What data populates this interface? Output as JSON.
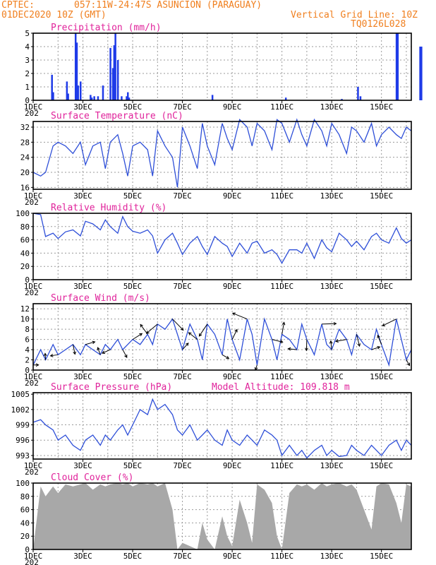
{
  "header": {
    "source": "CPTEC:",
    "location": "057:11W-24:47S  ASUNCION (PARAGUAY)",
    "run": "01DEC2020 10Z (GMT)",
    "grid_note": "Vertical Grid Line: 10Z",
    "code": "TQ0126L028"
  },
  "x_axis": {
    "labels": [
      "1DEC",
      "3DEC",
      "5DEC",
      "7DEC",
      "9DEC",
      "11DEC",
      "13DEC",
      "15DEC"
    ],
    "label_days": [
      0,
      2,
      4,
      6,
      8,
      10,
      12,
      14
    ],
    "range_days": [
      0,
      15.2
    ],
    "year_fragment": "202"
  },
  "colors": {
    "header": "#f07f1e",
    "panel_title": "#e0239b",
    "line": "#2e4fd8",
    "bar": "#1f3be8",
    "cloud": "#a8a8a8"
  },
  "chart_data": [
    {
      "type": "bar",
      "title": "Precipitation  (mm/h)",
      "ylim": [
        0,
        5
      ],
      "yticks": [
        0,
        1,
        2,
        3,
        4,
        5
      ],
      "grid": true,
      "x_units": "days since 01DEC2020 10Z",
      "series": [
        {
          "x": [
            0.75,
            0.8,
            1.35,
            1.4,
            1.7,
            1.75,
            1.8,
            1.9,
            2.3,
            2.35,
            2.45,
            2.6,
            2.8,
            3.1,
            3.2,
            3.25,
            3.3,
            3.4,
            3.55,
            3.75,
            3.8,
            3.85,
            7.2,
            10.15,
            12.4,
            13.05,
            13.15,
            14.6,
            14.65,
            15.55,
            15.6
          ],
          "values": [
            1.9,
            0.6,
            1.4,
            0.5,
            5,
            4.3,
            1.1,
            1.4,
            0.4,
            0.2,
            0.3,
            0.3,
            1.1,
            3.9,
            2.4,
            4.1,
            5,
            3.0,
            0.3,
            0.3,
            0.6,
            0.2,
            0.4,
            0.2,
            0.1,
            1.0,
            0.3,
            5,
            5,
            4,
            4
          ]
        }
      ]
    },
    {
      "type": "line",
      "title": "Surface Temperature (nC)",
      "ylim": [
        15.5,
        33.5
      ],
      "yticks": [
        16,
        20,
        24,
        28,
        32
      ],
      "grid": true,
      "series": [
        {
          "x": [
            0,
            0.3,
            0.5,
            0.8,
            1.0,
            1.3,
            1.6,
            1.9,
            2.1,
            2.4,
            2.7,
            2.9,
            3.1,
            3.4,
            3.6,
            3.8,
            4.0,
            4.3,
            4.6,
            4.8,
            5.0,
            5.3,
            5.6,
            5.8,
            6.0,
            6.3,
            6.6,
            6.8,
            7.0,
            7.3,
            7.6,
            7.8,
            8.0,
            8.3,
            8.6,
            8.8,
            9.0,
            9.3,
            9.6,
            9.8,
            10.0,
            10.3,
            10.6,
            10.8,
            11.0,
            11.3,
            11.6,
            11.8,
            12.0,
            12.3,
            12.6,
            12.8,
            13.0,
            13.3,
            13.6,
            13.8,
            14.0,
            14.3,
            14.6,
            14.8,
            15.0,
            15.2
          ],
          "values": [
            20,
            19,
            20,
            27,
            28,
            27,
            25,
            28,
            22,
            27,
            28,
            21,
            28,
            30,
            25,
            19,
            27,
            28,
            26,
            19,
            31,
            27,
            24,
            16,
            32,
            27,
            21,
            33,
            27,
            22,
            33,
            29,
            26,
            34,
            32,
            27,
            33,
            31,
            26,
            34,
            33,
            28,
            34,
            30,
            27,
            34,
            31,
            27,
            33,
            30,
            25,
            32,
            31,
            28,
            33,
            27,
            30,
            32,
            30,
            29,
            32,
            31
          ]
        }
      ]
    },
    {
      "type": "line",
      "title": "Relative Humidity (%)",
      "ylim": [
        0,
        100
      ],
      "yticks": [
        0,
        20,
        40,
        60,
        80,
        100
      ],
      "grid": true,
      "series": [
        {
          "x": [
            0,
            0.3,
            0.5,
            0.8,
            1.0,
            1.3,
            1.6,
            1.9,
            2.1,
            2.4,
            2.7,
            2.9,
            3.1,
            3.4,
            3.6,
            3.8,
            4.0,
            4.3,
            4.6,
            4.8,
            5.0,
            5.3,
            5.6,
            5.8,
            6.0,
            6.3,
            6.6,
            6.8,
            7.0,
            7.3,
            7.6,
            7.8,
            8.0,
            8.3,
            8.6,
            8.8,
            9.0,
            9.3,
            9.6,
            9.8,
            10.0,
            10.3,
            10.6,
            10.8,
            11.0,
            11.3,
            11.6,
            11.8,
            12.0,
            12.3,
            12.6,
            12.8,
            13.0,
            13.3,
            13.6,
            13.8,
            14.0,
            14.3,
            14.6,
            14.8,
            15.0,
            15.2
          ],
          "values": [
            100,
            98,
            65,
            70,
            62,
            72,
            75,
            66,
            88,
            84,
            75,
            90,
            80,
            70,
            95,
            80,
            73,
            70,
            75,
            66,
            40,
            60,
            70,
            55,
            38,
            55,
            65,
            50,
            38,
            65,
            55,
            50,
            35,
            55,
            40,
            55,
            58,
            40,
            45,
            38,
            25,
            45,
            45,
            40,
            55,
            32,
            60,
            48,
            42,
            70,
            60,
            50,
            58,
            45,
            65,
            70,
            60,
            55,
            78,
            62,
            55,
            60
          ]
        }
      ]
    },
    {
      "type": "line",
      "title": "Surface Wind (m/s)",
      "ylim": [
        0,
        13
      ],
      "yticks": [
        0,
        2,
        4,
        6,
        8,
        10,
        12
      ],
      "grid": true,
      "series": [
        {
          "x": [
            0,
            0.3,
            0.5,
            0.8,
            1.0,
            1.3,
            1.6,
            1.9,
            2.1,
            2.4,
            2.7,
            2.9,
            3.1,
            3.4,
            3.6,
            3.8,
            4.0,
            4.3,
            4.6,
            4.8,
            5.0,
            5.3,
            5.6,
            5.8,
            6.0,
            6.3,
            6.6,
            6.8,
            7.0,
            7.3,
            7.6,
            7.8,
            8.0,
            8.3,
            8.6,
            8.8,
            9.0,
            9.3,
            9.6,
            9.8,
            10.0,
            10.3,
            10.6,
            10.8,
            11.0,
            11.3,
            11.6,
            11.8,
            12.0,
            12.3,
            12.6,
            12.8,
            13.0,
            13.3,
            13.6,
            13.8,
            14.0,
            14.3,
            14.6,
            14.8,
            15.0,
            15.2
          ],
          "values": [
            1,
            4,
            2,
            5,
            3,
            4,
            5,
            3,
            5,
            4,
            3,
            5,
            4,
            6,
            4,
            5,
            6,
            5,
            7,
            5,
            9,
            8,
            10,
            7,
            4,
            9,
            6,
            2,
            9,
            7,
            3,
            10,
            6,
            2,
            10,
            7,
            1,
            10,
            6,
            2,
            7,
            6,
            4,
            9,
            6,
            3,
            9,
            5,
            4,
            8,
            6,
            3,
            7,
            5,
            4,
            8,
            5,
            1,
            10,
            6,
            2,
            4
          ]
        }
      ],
      "arrows_note": "wind direction arrows"
    },
    {
      "type": "line",
      "title": "Surface Pressure (hPa)",
      "annotation": "Model Altitude: 109.818  m",
      "ylim": [
        992.3,
        1005.3
      ],
      "ytick_values": [
        993,
        996,
        999,
        1002,
        1005
      ],
      "ytick_labels": [
        "993",
        "996",
        "999",
        "1002",
        "1005"
      ],
      "grid": true,
      "series": [
        {
          "x": [
            0,
            0.3,
            0.5,
            0.8,
            1.0,
            1.3,
            1.6,
            1.9,
            2.1,
            2.4,
            2.7,
            2.9,
            3.1,
            3.4,
            3.6,
            3.8,
            4.0,
            4.3,
            4.6,
            4.8,
            5.0,
            5.3,
            5.6,
            5.8,
            6.0,
            6.3,
            6.6,
            6.8,
            7.0,
            7.3,
            7.6,
            7.8,
            8.0,
            8.3,
            8.6,
            8.8,
            9.0,
            9.3,
            9.6,
            9.8,
            10.0,
            10.3,
            10.6,
            10.8,
            11.0,
            11.3,
            11.6,
            11.8,
            12.0,
            12.3,
            12.6,
            12.8,
            13.0,
            13.3,
            13.6,
            13.8,
            14.0,
            14.3,
            14.6,
            14.8,
            15.0,
            15.2
          ],
          "values": [
            999.5,
            1000,
            999,
            998,
            996,
            997,
            995,
            994,
            996,
            997,
            995,
            997,
            996,
            998,
            999,
            997,
            999,
            1002,
            1001,
            1004,
            1002,
            1003,
            1001,
            998,
            997,
            999,
            996,
            997,
            998,
            996,
            995,
            998,
            996,
            995,
            997,
            996,
            995,
            998,
            997,
            996,
            993,
            995,
            993,
            994,
            992.5,
            994,
            995,
            993,
            994,
            992.8,
            993,
            995,
            994,
            993,
            995,
            994,
            993,
            995,
            996,
            994,
            996,
            995
          ]
        }
      ]
    },
    {
      "type": "area",
      "title": "Cloud Cover (%)",
      "ylim": [
        0,
        100
      ],
      "yticks": [
        0,
        20,
        40,
        60,
        80,
        100
      ],
      "grid": true,
      "series": [
        {
          "x": [
            0,
            0.3,
            0.5,
            0.8,
            1.0,
            1.3,
            1.6,
            1.9,
            2.1,
            2.4,
            2.7,
            2.9,
            3.1,
            3.4,
            3.6,
            3.8,
            4.0,
            4.3,
            4.6,
            4.8,
            5.0,
            5.3,
            5.6,
            5.8,
            6.0,
            6.3,
            6.6,
            6.8,
            7.0,
            7.3,
            7.6,
            7.8,
            8.0,
            8.3,
            8.6,
            8.8,
            9.0,
            9.3,
            9.6,
            9.8,
            10.0,
            10.3,
            10.6,
            10.8,
            11.0,
            11.3,
            11.6,
            11.8,
            12.0,
            12.3,
            12.6,
            12.8,
            13.0,
            13.3,
            13.6,
            13.8,
            14.0,
            14.3,
            14.6,
            14.8,
            15.0,
            15.2
          ],
          "values": [
            0,
            95,
            80,
            95,
            85,
            98,
            95,
            98,
            100,
            90,
            98,
            95,
            98,
            100,
            98,
            100,
            95,
            100,
            98,
            100,
            95,
            100,
            60,
            0,
            10,
            5,
            0,
            40,
            15,
            0,
            50,
            20,
            5,
            75,
            40,
            10,
            98,
            90,
            70,
            20,
            0,
            85,
            98,
            95,
            98,
            90,
            100,
            95,
            98,
            100,
            95,
            98,
            90,
            60,
            30,
            95,
            100,
            98,
            70,
            40,
            98,
            95
          ]
        }
      ]
    }
  ]
}
